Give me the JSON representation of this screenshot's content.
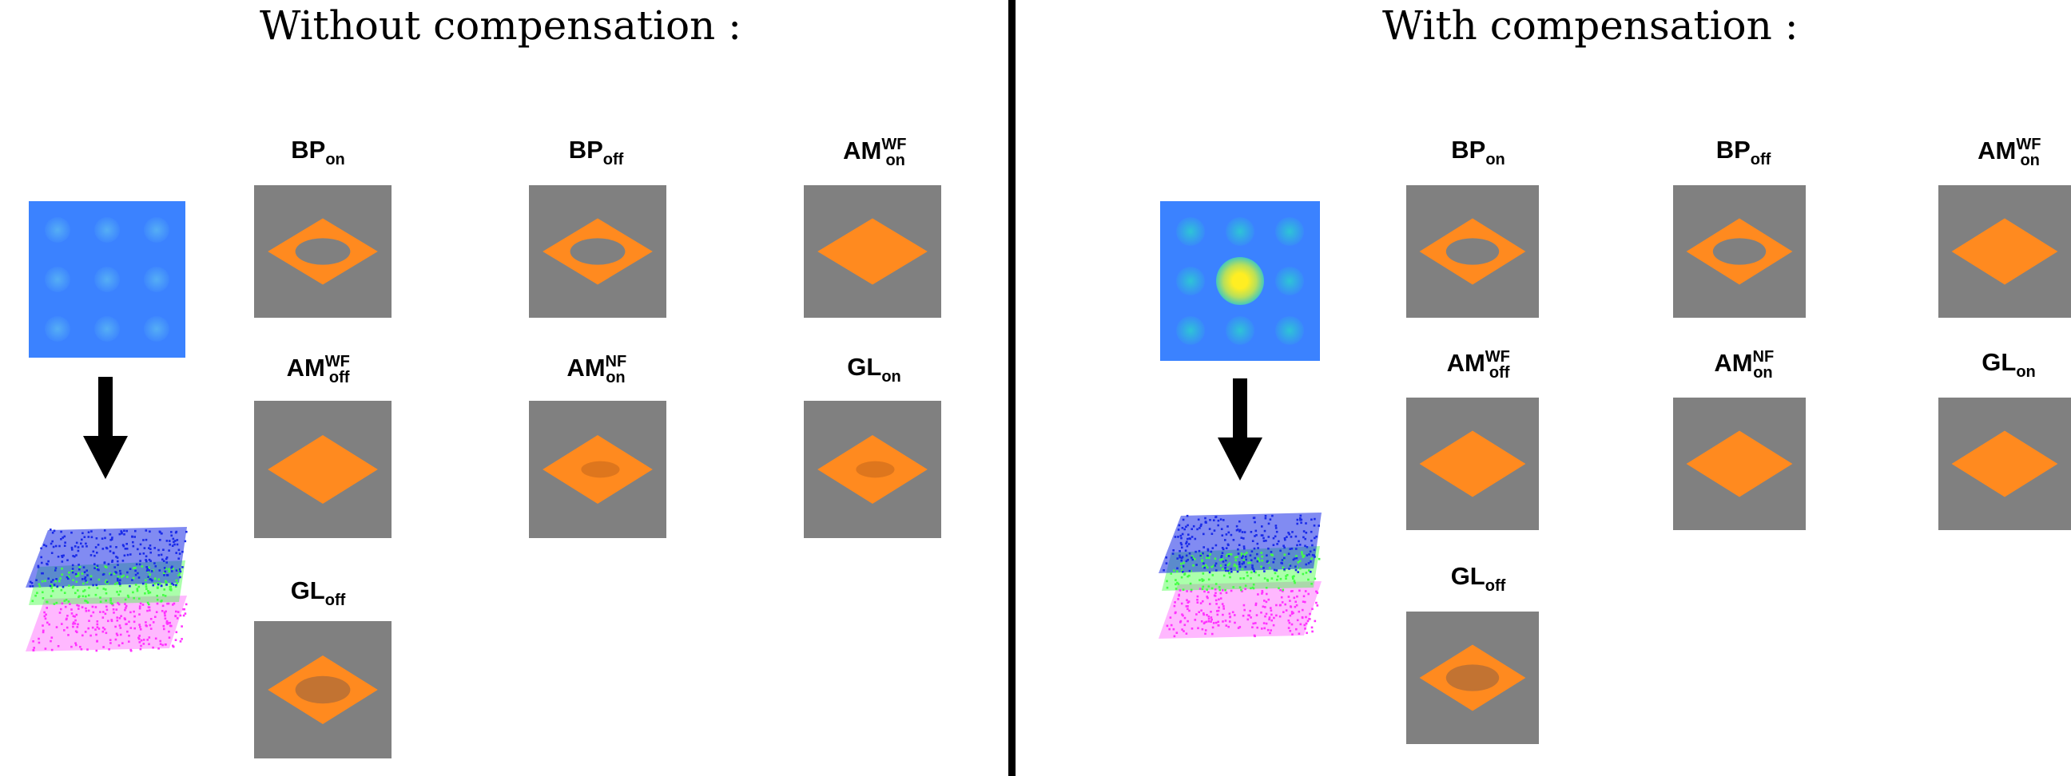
{
  "panels": [
    {
      "title": "Without compensation :"
    },
    {
      "title": "With compensation :"
    }
  ],
  "labels": {
    "bp_on": {
      "base": "BP",
      "sub": "on"
    },
    "bp_off": {
      "base": "BP",
      "sub": "off"
    },
    "amwf_on": {
      "base": "AM",
      "sup": "WF",
      "sub": "on"
    },
    "amwf_off": {
      "base": "AM",
      "sup": "WF",
      "sub": "off"
    },
    "amnf_on": {
      "base": "AM",
      "sup": "NF",
      "sub": "on"
    },
    "gl_on": {
      "base": "GL",
      "sub": "on"
    },
    "gl_off": {
      "base": "GL",
      "sub": "off"
    }
  },
  "colors": {
    "tile_background": "#808080",
    "shape_orange": "#ff8a1f",
    "source_blue": "#3b82ff",
    "hotspot_yellow": "#ffee22",
    "cloud_top": "#1a2be8",
    "cloud_middle": "#44ff44",
    "cloud_bottom": "#ff33ff"
  },
  "icons": {
    "arrow": "down-arrow-icon",
    "cloud": "point-cloud-icon"
  }
}
